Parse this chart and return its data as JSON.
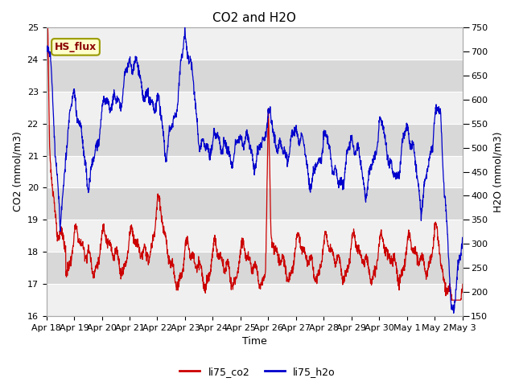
{
  "title": "CO2 and H2O",
  "xlabel": "Time",
  "ylabel_left": "CO2 (mmol/m3)",
  "ylabel_right": "H2O (mmol/m3)",
  "ylim_left": [
    16.0,
    25.0
  ],
  "ylim_right": [
    150,
    750
  ],
  "yticks_left": [
    16.0,
    17.0,
    18.0,
    19.0,
    20.0,
    21.0,
    22.0,
    23.0,
    24.0,
    25.0
  ],
  "yticks_right": [
    150,
    200,
    250,
    300,
    350,
    400,
    450,
    500,
    550,
    600,
    650,
    700,
    750
  ],
  "xtick_labels": [
    "Apr 18",
    "Apr 19",
    "Apr 20",
    "Apr 21",
    "Apr 22",
    "Apr 23",
    "Apr 24",
    "Apr 25",
    "Apr 26",
    "Apr 27",
    "Apr 28",
    "Apr 29",
    "Apr 30",
    "May 1",
    "May 2",
    "May 3"
  ],
  "color_co2": "#cc0000",
  "color_h2o": "#0000cc",
  "legend_co2": "li75_co2",
  "legend_h2o": "li75_h2o",
  "annotation_text": "HS_flux",
  "bg_color": "#ffffff",
  "plot_bg_light": "#f0f0f0",
  "plot_bg_dark": "#d8d8d8",
  "grid_color": "#ffffff",
  "title_fontsize": 11,
  "axis_fontsize": 9,
  "tick_fontsize": 8
}
